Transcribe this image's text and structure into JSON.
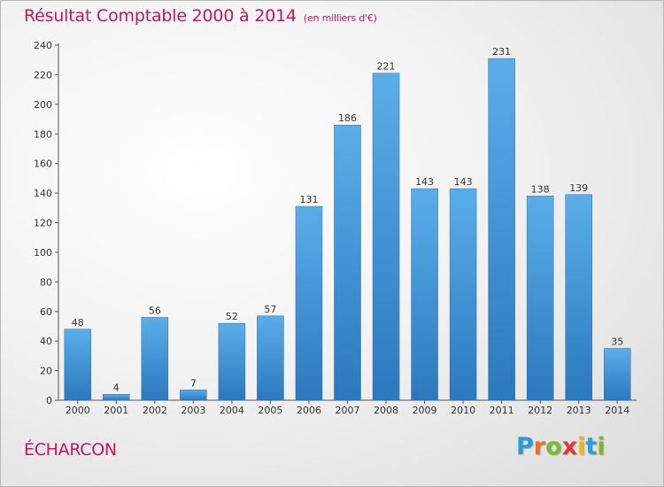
{
  "header": {
    "title": "Résultat Comptable 2000 à 2014",
    "subtitle": "(en milliers d'€)"
  },
  "footer": {
    "town": "ÉCHARCON",
    "logo": [
      "P",
      "r",
      "o",
      "x",
      "i",
      "t",
      "i"
    ],
    "logo_colors": [
      "#2e9bd6",
      "#e8731f",
      "#7cb82f",
      "#e53935",
      "#f2b705",
      "#2e9bd6",
      "#7cb82f"
    ]
  },
  "chart_data": {
    "type": "bar",
    "title": "Résultat Comptable 2000 à 2014",
    "xlabel": "",
    "ylabel": "",
    "categories": [
      "2000",
      "2001",
      "2002",
      "2003",
      "2004",
      "2005",
      "2006",
      "2007",
      "2008",
      "2009",
      "2010",
      "2011",
      "2012",
      "2013",
      "2014"
    ],
    "values": [
      48,
      4,
      56,
      7,
      52,
      57,
      131,
      186,
      221,
      143,
      143,
      231,
      138,
      139,
      35
    ],
    "ylim": [
      0,
      240
    ],
    "yticks": [
      0,
      20,
      40,
      60,
      80,
      100,
      120,
      140,
      160,
      180,
      200,
      220,
      240
    ],
    "grid": false,
    "bar_color": "#3f8fd2",
    "bar_color_light": "#5aaee8",
    "bar_color_dark": "#2c78bf"
  }
}
